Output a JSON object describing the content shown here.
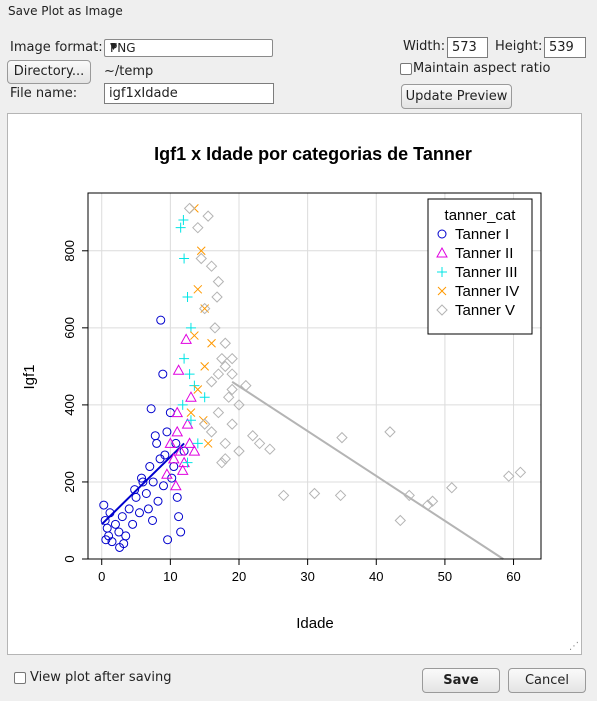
{
  "window": {
    "title": "Save Plot as Image"
  },
  "form": {
    "format_label": "Image format:",
    "format_value": "PNG",
    "directory_button": "Directory...",
    "directory_path": "~/temp",
    "filename_label": "File name:",
    "filename_value": "igf1xIdade",
    "width_label": "Width:",
    "width_value": "573",
    "height_label": "Height:",
    "height_value": "539",
    "aspect_label": "Maintain aspect ratio",
    "aspect_checked": false,
    "update_button": "Update Preview"
  },
  "footer": {
    "view_label": "View plot after saving",
    "view_checked": false,
    "save_button": "Save",
    "cancel_button": "Cancel"
  },
  "chart_data": {
    "type": "scatter",
    "title": "Igf1 x Idade por categorias de Tanner",
    "xlabel": "Idade",
    "ylabel": "Igf1",
    "xlim": [
      -2,
      64
    ],
    "ylim": [
      0,
      950
    ],
    "xticks": [
      0,
      10,
      20,
      30,
      40,
      50,
      60
    ],
    "yticks": [
      0,
      200,
      400,
      600,
      800
    ],
    "grid": true,
    "legend": {
      "title": "tanner_cat",
      "position": "top-right"
    },
    "series": [
      {
        "name": "Tanner I",
        "color": "#0000cd",
        "marker": "circle",
        "points": [
          [
            0.3,
            140
          ],
          [
            0.5,
            100
          ],
          [
            0.6,
            50
          ],
          [
            0.8,
            80
          ],
          [
            1,
            60
          ],
          [
            1.2,
            120
          ],
          [
            1.5,
            45
          ],
          [
            2,
            90
          ],
          [
            2.5,
            70
          ],
          [
            2.6,
            30
          ],
          [
            3,
            110
          ],
          [
            3.5,
            60
          ],
          [
            4,
            130
          ],
          [
            4.5,
            90
          ],
          [
            5,
            160
          ],
          [
            5.5,
            120
          ],
          [
            6,
            200
          ],
          [
            6.5,
            170
          ],
          [
            7,
            240
          ],
          [
            7.5,
            200
          ],
          [
            8,
            300
          ],
          [
            8.5,
            260
          ],
          [
            9,
            190
          ],
          [
            7.2,
            390
          ],
          [
            8.6,
            620
          ],
          [
            9.5,
            330
          ],
          [
            10,
            380
          ],
          [
            10.5,
            240
          ],
          [
            11,
            160
          ],
          [
            11.5,
            70
          ],
          [
            12,
            280
          ],
          [
            3.2,
            40
          ],
          [
            5.8,
            210
          ],
          [
            7.8,
            320
          ],
          [
            9.2,
            270
          ],
          [
            6.8,
            130
          ],
          [
            8.2,
            150
          ],
          [
            10.2,
            210
          ],
          [
            4.8,
            180
          ],
          [
            7.4,
            100
          ],
          [
            9.6,
            50
          ],
          [
            11.2,
            110
          ],
          [
            8.9,
            480
          ],
          [
            10.8,
            300
          ]
        ],
        "trend": [
          [
            0,
            90
          ],
          [
            12,
            300
          ]
        ]
      },
      {
        "name": "Tanner II",
        "color": "#e000e0",
        "marker": "triangle",
        "points": [
          [
            9.5,
            220
          ],
          [
            10,
            300
          ],
          [
            10.5,
            260
          ],
          [
            11,
            330
          ],
          [
            11.5,
            280
          ],
          [
            12,
            250
          ],
          [
            12.5,
            350
          ],
          [
            13,
            420
          ],
          [
            11.2,
            490
          ],
          [
            12.3,
            570
          ],
          [
            10.8,
            190
          ],
          [
            11.8,
            230
          ],
          [
            12.8,
            300
          ],
          [
            13.5,
            280
          ],
          [
            11,
            380
          ]
        ]
      },
      {
        "name": "Tanner III",
        "color": "#00e5e5",
        "marker": "plus",
        "points": [
          [
            11.5,
            860
          ],
          [
            12,
            780
          ],
          [
            12.5,
            680
          ],
          [
            13,
            600
          ],
          [
            12,
            520
          ],
          [
            12.8,
            480
          ],
          [
            13.5,
            450
          ],
          [
            11.8,
            400
          ],
          [
            13,
            360
          ],
          [
            14,
            300
          ],
          [
            12.5,
            250
          ],
          [
            15,
            420
          ],
          [
            11.9,
            880
          ]
        ]
      },
      {
        "name": "Tanner IV",
        "color": "#ff9900",
        "marker": "x",
        "points": [
          [
            13.5,
            910
          ],
          [
            14.5,
            800
          ],
          [
            14,
            700
          ],
          [
            15,
            650
          ],
          [
            13.5,
            580
          ],
          [
            15,
            500
          ],
          [
            14,
            440
          ],
          [
            14.8,
            360
          ],
          [
            16,
            560
          ],
          [
            13,
            380
          ],
          [
            15.5,
            300
          ]
        ]
      },
      {
        "name": "Tanner V",
        "color": "#b4b4b4",
        "marker": "diamond",
        "points": [
          [
            12.8,
            910
          ],
          [
            14,
            860
          ],
          [
            15.5,
            890
          ],
          [
            16,
            760
          ],
          [
            17,
            720
          ],
          [
            15,
            650
          ],
          [
            16.5,
            600
          ],
          [
            18,
            560
          ],
          [
            17.5,
            520
          ],
          [
            19,
            480
          ],
          [
            16,
            460
          ],
          [
            18.5,
            420
          ],
          [
            20,
            400
          ],
          [
            17,
            380
          ],
          [
            19,
            350
          ],
          [
            16,
            330
          ],
          [
            18,
            300
          ],
          [
            20,
            280
          ],
          [
            17.5,
            250
          ],
          [
            15,
            350
          ],
          [
            19,
            440
          ],
          [
            21,
            450
          ],
          [
            22,
            320
          ],
          [
            23,
            300
          ],
          [
            17,
            480
          ],
          [
            18,
            500
          ],
          [
            14.5,
            780
          ],
          [
            16.8,
            680
          ],
          [
            19,
            520
          ],
          [
            18,
            260
          ],
          [
            24.5,
            285
          ],
          [
            26.5,
            165
          ],
          [
            31,
            170
          ],
          [
            34.8,
            165
          ],
          [
            35,
            315
          ],
          [
            42,
            330
          ],
          [
            43.5,
            100
          ],
          [
            44.8,
            165
          ],
          [
            47.5,
            140
          ],
          [
            48.2,
            150
          ],
          [
            51,
            185
          ],
          [
            59.3,
            215
          ],
          [
            61,
            225
          ]
        ],
        "trend": [
          [
            19,
            460
          ],
          [
            58.5,
            0
          ]
        ]
      }
    ]
  }
}
